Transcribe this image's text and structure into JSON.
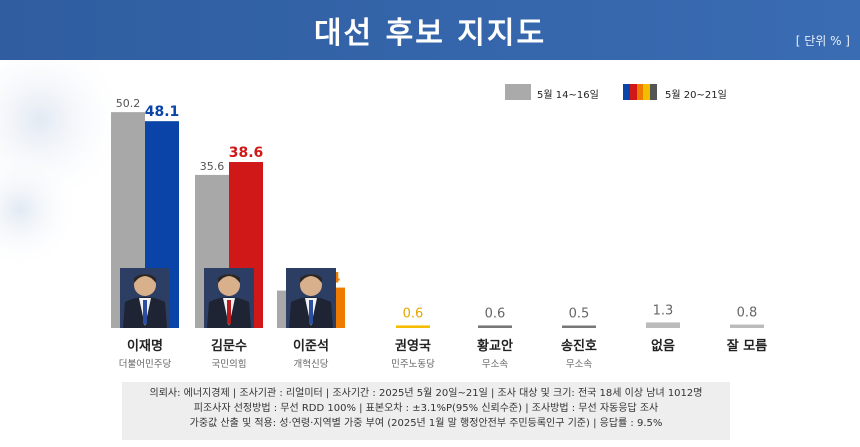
{
  "header": {
    "title": "대선 후보 지지도",
    "unit": "[ 단위 % ]"
  },
  "legend": {
    "prev_label": "5월 14~16일",
    "curr_label": "5월 20~21일",
    "prev_color": "#aaaaaa",
    "curr_colors": [
      "#0a44a8",
      "#d01818",
      "#ee7b00",
      "#f5bd00",
      "#555555"
    ]
  },
  "chart_data": {
    "type": "bar",
    "title": "대선 후보 지지도",
    "unit": "단위 %",
    "categories": [
      "이재명",
      "김문수",
      "이준석",
      "권영국",
      "황교안",
      "송진호",
      "없음",
      "잘 모름"
    ],
    "parties": [
      "더불어민주당",
      "국민의힘",
      "개혁신당",
      "민주노동당",
      "무소속",
      "무소속",
      "",
      ""
    ],
    "series": [
      {
        "name": "5월 14~16일",
        "values": [
          50.2,
          35.6,
          8.7,
          null,
          null,
          null,
          null,
          null
        ]
      },
      {
        "name": "5월 20~21일",
        "values": [
          48.1,
          38.6,
          9.4,
          0.6,
          0.6,
          0.5,
          1.3,
          0.8
        ]
      }
    ],
    "colors": [
      "#0a44a8",
      "#d01818",
      "#ee7b00",
      "#f5bd00",
      "#777777",
      "#777777",
      "#bbbbbb",
      "#bbbbbb"
    ],
    "prev_color": "#a8a8a8",
    "ylim": [
      0,
      55
    ]
  },
  "footer": {
    "line1": "의뢰사: 에너지경제 | 조사기관 : 리얼미터 | 조사기간 : 2025년 5월 20일~21일 | 조사 대상 및 크기: 전국 18세 이상 남녀 1012명",
    "line2": "피조사자 선정방법 : 무선 RDD 100% | 표본오차 : ±3.1%P(95% 신뢰수준) | 조사방법 : 무선 자동응답 조사",
    "line3": "가중값 산출 및 적용: 성·연령·지역별 가중 부여 (2025년 1월 말 행정안전부 주민등록인구 기준) | 응답률 : 9.5%"
  }
}
